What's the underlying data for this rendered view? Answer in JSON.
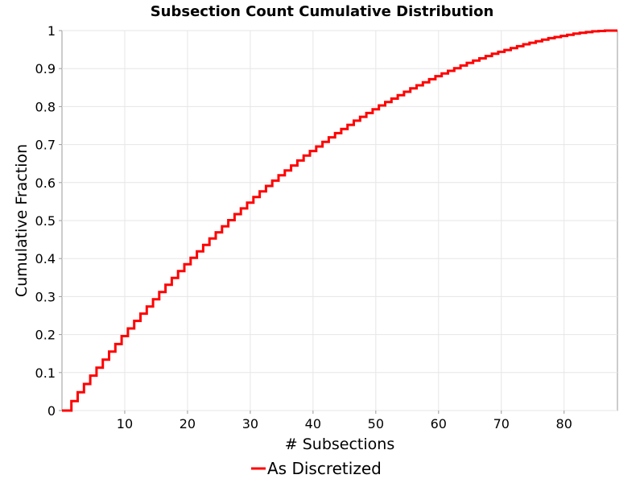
{
  "chart_data": {
    "type": "line",
    "step": true,
    "title": "Subsection Count Cumulative Distribution",
    "xlabel": "# Subsections",
    "ylabel": "Cumulative Fraction",
    "xlim": [
      0,
      88.5
    ],
    "ylim": [
      0,
      1
    ],
    "xticks": [
      "10",
      "20",
      "30",
      "40",
      "50",
      "60",
      "70",
      "80"
    ],
    "yticks": [
      "0",
      "0.1",
      "0.2",
      "0.3",
      "0.4",
      "0.5",
      "0.6",
      "0.7",
      "0.8",
      "0.9",
      "1"
    ],
    "grid": true,
    "legend_position": "bottom-center",
    "series": [
      {
        "name": "As Discretized",
        "color": "#ff0000",
        "x": [
          0,
          1.5,
          2.5,
          3.5,
          4.5,
          5.5,
          6.5,
          7.5,
          8.5,
          9.5,
          10.5,
          11.5,
          12.5,
          13.5,
          14.5,
          15.5,
          16.5,
          17.5,
          18.5,
          19.5,
          20.5,
          21.5,
          22.5,
          23.5,
          24.5,
          25.5,
          26.5,
          27.5,
          28.5,
          29.5,
          30.5,
          31.5,
          32.5,
          33.5,
          34.5,
          35.5,
          36.5,
          37.5,
          38.5,
          39.5,
          40.5,
          41.5,
          42.5,
          43.5,
          44.5,
          45.5,
          46.5,
          47.5,
          48.5,
          49.5,
          50.5,
          51.5,
          52.5,
          53.5,
          54.5,
          55.5,
          56.5,
          57.5,
          58.5,
          59.5,
          60.5,
          61.5,
          62.5,
          63.5,
          64.5,
          65.5,
          66.5,
          67.5,
          68.5,
          69.5,
          70.5,
          71.5,
          72.5,
          73.5,
          74.5,
          75.5,
          76.5,
          77.5,
          78.5,
          79.5,
          80.5,
          81.5,
          82.5,
          83.5,
          84.5,
          85.5,
          86.5,
          88.5
        ],
        "y": [
          0,
          0.025,
          0.048,
          0.07,
          0.092,
          0.113,
          0.134,
          0.155,
          0.175,
          0.196,
          0.216,
          0.236,
          0.255,
          0.274,
          0.293,
          0.312,
          0.331,
          0.349,
          0.367,
          0.385,
          0.402,
          0.419,
          0.436,
          0.453,
          0.469,
          0.485,
          0.501,
          0.517,
          0.532,
          0.547,
          0.562,
          0.577,
          0.591,
          0.605,
          0.619,
          0.632,
          0.645,
          0.658,
          0.671,
          0.683,
          0.695,
          0.707,
          0.719,
          0.73,
          0.741,
          0.752,
          0.763,
          0.773,
          0.783,
          0.793,
          0.803,
          0.812,
          0.821,
          0.83,
          0.839,
          0.848,
          0.856,
          0.864,
          0.872,
          0.88,
          0.887,
          0.894,
          0.901,
          0.908,
          0.915,
          0.921,
          0.927,
          0.933,
          0.939,
          0.944,
          0.949,
          0.954,
          0.959,
          0.964,
          0.968,
          0.972,
          0.976,
          0.98,
          0.983,
          0.986,
          0.989,
          0.992,
          0.994,
          0.996,
          0.998,
          0.999,
          1.0,
          1.0
        ]
      }
    ]
  }
}
